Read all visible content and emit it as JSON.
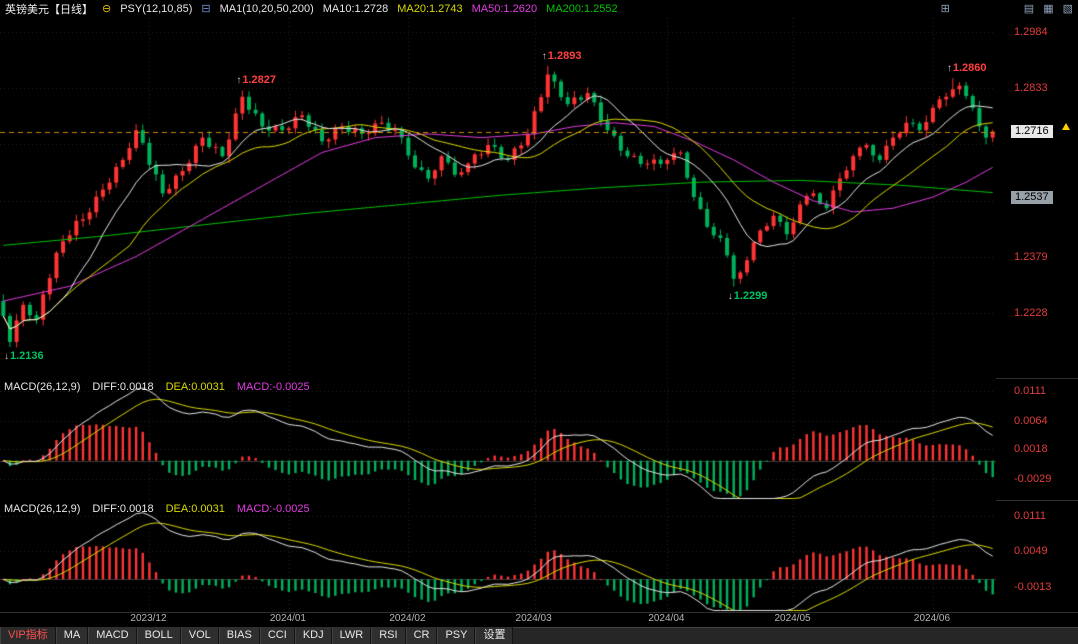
{
  "header": {
    "symbol": "英镑美元【日线】",
    "psy": "PSY(12,10,85)",
    "ma_group": "MA1(10,20,50,200)",
    "ma10": "MA10:1.2728",
    "ma20": "MA20:1.2743",
    "ma50": "MA50:1.2620",
    "ma200": "MA200:1.2552"
  },
  "icons": {
    "collapse": "⊖",
    "indicator": "⊟",
    "grid": "⊞",
    "layout1": "▤",
    "layout2": "▦",
    "layout3": "▧"
  },
  "colors": {
    "up": "#ff3434",
    "down": "#00b25a",
    "ma10": "#e6e6e6",
    "ma20": "#d9d900",
    "ma50": "#e23ce2",
    "ma200": "#00c400",
    "diff": "#e6e6e6",
    "dea": "#d9d900",
    "axis_label": "#e23c3c",
    "current_line": "#cc8a00",
    "high_label": "#ff4040",
    "low_label": "#00c060"
  },
  "price_pane": {
    "axis_labels": [
      {
        "text": "1.2984",
        "value": 1.2984
      },
      {
        "text": "1.2833",
        "value": 1.2833
      },
      {
        "text": "1.2530",
        "value": 1.253
      },
      {
        "text": "1.2379",
        "value": 1.2379
      },
      {
        "text": "1.2228",
        "value": 1.2228
      }
    ],
    "grid_prices": [
      1.2984,
      1.2833,
      1.2682,
      1.253,
      1.2379,
      1.2228
    ],
    "current_badge": {
      "text": "1.2716",
      "value": 1.2716
    },
    "level_badge": {
      "text": "1.2537",
      "value": 1.2537
    },
    "annotations": [
      {
        "text": "1.2827",
        "index": 36,
        "price": 1.2827,
        "kind": "high",
        "arrow": "↑"
      },
      {
        "text": "1.2893",
        "index": 82,
        "price": 1.2893,
        "kind": "high",
        "arrow": "↑"
      },
      {
        "text": "1.2860",
        "index": 143,
        "price": 1.286,
        "kind": "high",
        "arrow": "↑"
      },
      {
        "text": "1.2299",
        "index": 110,
        "price": 1.2299,
        "kind": "low",
        "arrow": "↓"
      },
      {
        "text": "1.2136",
        "index": 1,
        "price": 1.2136,
        "kind": "low",
        "arrow": "↓"
      }
    ]
  },
  "macd1": {
    "title": "MACD(26,12,9)",
    "diff": "DIFF:0.0018",
    "dea": "DEA:0.0031",
    "macd": "MACD:-0.0025",
    "axis": [
      {
        "text": "0.0111",
        "value": 0.0111
      },
      {
        "text": "0.0064",
        "value": 0.0064
      },
      {
        "text": "0.0018",
        "value": 0.0018
      },
      {
        "text": "-0.0029",
        "value": -0.0029
      }
    ],
    "range": [
      -0.0063,
      0.0132
    ]
  },
  "macd2": {
    "title": "MACD(26,12,9)",
    "diff": "DIFF:0.0018",
    "dea": "DEA:0.0031",
    "macd": "MACD:-0.0025",
    "axis": [
      {
        "text": "0.0111",
        "value": 0.0111
      },
      {
        "text": "0.0049",
        "value": 0.0049
      },
      {
        "text": "-0.0013",
        "value": -0.0013
      }
    ],
    "range": [
      -0.0057,
      0.0138
    ]
  },
  "date_axis": {
    "labels": [
      {
        "text": "2023/12",
        "index": 22
      },
      {
        "text": "2024/01",
        "index": 43
      },
      {
        "text": "2024/02",
        "index": 61
      },
      {
        "text": "2024/03",
        "index": 80
      },
      {
        "text": "2024/04",
        "index": 100
      },
      {
        "text": "2024/05",
        "index": 119
      },
      {
        "text": "2024/06",
        "index": 140
      }
    ]
  },
  "toolbar": {
    "items": [
      {
        "key": "vip",
        "label": "VIP指标",
        "accent": true
      },
      {
        "key": "ma",
        "label": "MA"
      },
      {
        "key": "macd",
        "label": "MACD"
      },
      {
        "key": "boll",
        "label": "BOLL"
      },
      {
        "key": "vol",
        "label": "VOL"
      },
      {
        "key": "bias",
        "label": "BIAS"
      },
      {
        "key": "cci",
        "label": "CCI"
      },
      {
        "key": "kdj",
        "label": "KDJ"
      },
      {
        "key": "lwr",
        "label": "LWR"
      },
      {
        "key": "rsi",
        "label": "RSI"
      },
      {
        "key": "cr",
        "label": "CR"
      },
      {
        "key": "psy",
        "label": "PSY"
      },
      {
        "key": "settings",
        "label": "设置"
      }
    ]
  },
  "chart_data": {
    "type": "candlestick",
    "title": "GBP/USD daily (英镑美元 日线)",
    "ylim": [
      1.2053,
      1.3022
    ],
    "current_price": 1.2716,
    "first_open": 1.226,
    "closes": [
      1.222,
      1.215,
      1.2208,
      1.225,
      1.2222,
      1.221,
      1.2278,
      1.2322,
      1.239,
      1.2421,
      1.2437,
      1.2476,
      1.248,
      1.2499,
      1.2541,
      1.256,
      1.2579,
      1.2621,
      1.264,
      1.2672,
      1.272,
      1.2686,
      1.2627,
      1.2601,
      1.255,
      1.2562,
      1.2598,
      1.261,
      1.2632,
      1.2678,
      1.27,
      1.2675,
      1.2675,
      1.265,
      1.2695,
      1.2765,
      1.281,
      1.2775,
      1.2765,
      1.273,
      1.2719,
      1.2731,
      1.272,
      1.2725,
      1.2755,
      1.276,
      1.2729,
      1.2721,
      1.269,
      1.2695,
      1.2725,
      1.273,
      1.2715,
      1.2725,
      1.271,
      1.2712,
      1.2738,
      1.274,
      1.2719,
      1.2721,
      1.27,
      1.2652,
      1.262,
      1.2613,
      1.259,
      1.2612,
      1.265,
      1.2633,
      1.26,
      1.2607,
      1.263,
      1.2655,
      1.2655,
      1.268,
      1.2675,
      1.2645,
      1.264,
      1.2671,
      1.2679,
      1.271,
      1.2771,
      1.2809,
      1.287,
      1.2851,
      1.2809,
      1.279,
      1.2808,
      1.2802,
      1.282,
      1.2795,
      1.2745,
      1.272,
      1.2705,
      1.2665,
      1.265,
      1.2651,
      1.2629,
      1.263,
      1.2641,
      1.2629,
      1.264,
      1.2658,
      1.266,
      1.2592,
      1.254,
      1.2508,
      1.246,
      1.2437,
      1.243,
      1.2383,
      1.232,
      1.2337,
      1.237,
      1.2418,
      1.245,
      1.2462,
      1.249,
      1.2473,
      1.244,
      1.2472,
      1.252,
      1.2543,
      1.255,
      1.2522,
      1.251,
      1.2558,
      1.259,
      1.2612,
      1.265,
      1.2673,
      1.268,
      1.2652,
      1.264,
      1.2678,
      1.27,
      1.2712,
      1.274,
      1.2738,
      1.272,
      1.2742,
      1.278,
      1.2803,
      1.281,
      1.283,
      1.284,
      1.2812,
      1.278,
      1.273,
      1.27,
      1.2716
    ],
    "extremes": {
      "1": {
        "low": 1.2136
      },
      "36": {
        "high": 1.2827
      },
      "82": {
        "high": 1.2893
      },
      "110": {
        "low": 1.2299
      },
      "143": {
        "high": 1.286
      }
    },
    "ma50_path": [
      [
        0,
        1.226
      ],
      [
        10,
        1.23
      ],
      [
        20,
        1.238
      ],
      [
        30,
        1.248
      ],
      [
        40,
        1.258
      ],
      [
        48,
        1.266
      ],
      [
        56,
        1.27
      ],
      [
        64,
        1.271
      ],
      [
        72,
        1.27
      ],
      [
        80,
        1.271
      ],
      [
        86,
        1.273
      ],
      [
        92,
        1.274
      ],
      [
        98,
        1.273
      ],
      [
        104,
        1.269
      ],
      [
        110,
        1.264
      ],
      [
        116,
        1.258
      ],
      [
        122,
        1.253
      ],
      [
        128,
        1.25
      ],
      [
        134,
        1.251
      ],
      [
        140,
        1.254
      ],
      [
        145,
        1.258
      ],
      [
        149,
        1.262
      ]
    ],
    "ma200_path": [
      [
        0,
        1.241
      ],
      [
        15,
        1.2435
      ],
      [
        30,
        1.2465
      ],
      [
        45,
        1.2495
      ],
      [
        60,
        1.252
      ],
      [
        75,
        1.2545
      ],
      [
        90,
        1.2565
      ],
      [
        105,
        1.258
      ],
      [
        120,
        1.2585
      ],
      [
        135,
        1.2572
      ],
      [
        149,
        1.2552
      ]
    ],
    "macd_displayed": {
      "diff": 0.0018,
      "dea": 0.0031,
      "macd": -0.0025
    },
    "ma_displayed": {
      "ma10": 1.2728,
      "ma20": 1.2743,
      "ma50": 1.262,
      "ma200": 1.2552
    }
  }
}
